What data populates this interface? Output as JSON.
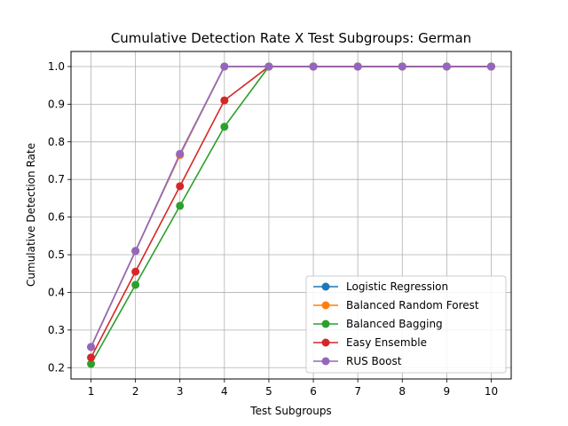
{
  "chart_data": {
    "type": "line",
    "title": "Cumulative Detection Rate X Test Subgroups: German",
    "xlabel": "Test Subgroups",
    "ylabel": "Cumulative Detection Rate",
    "x": [
      1,
      2,
      3,
      4,
      5,
      6,
      7,
      8,
      9,
      10
    ],
    "xlim": [
      0.55,
      10.45
    ],
    "ylim": [
      0.17,
      1.04
    ],
    "yticks": [
      "0.2",
      "0.3",
      "0.4",
      "0.5",
      "0.6",
      "0.7",
      "0.8",
      "0.9",
      "1.0"
    ],
    "grid": true,
    "legend_position": "lower-right",
    "series": [
      {
        "name": "Logistic Regression",
        "color": "#1f77b4",
        "values": [
          0.255,
          0.51,
          0.765,
          1.0,
          1.0,
          1.0,
          1.0,
          1.0,
          1.0,
          1.0
        ]
      },
      {
        "name": "Balanced Random Forest",
        "color": "#ff7f0e",
        "values": [
          0.255,
          0.51,
          0.765,
          1.0,
          1.0,
          1.0,
          1.0,
          1.0,
          1.0,
          1.0
        ]
      },
      {
        "name": "Balanced Bagging",
        "color": "#2ca02c",
        "values": [
          0.21,
          0.42,
          0.63,
          0.84,
          1.0,
          1.0,
          1.0,
          1.0,
          1.0,
          1.0
        ]
      },
      {
        "name": "Easy Ensemble",
        "color": "#d62728",
        "values": [
          0.227,
          0.455,
          0.682,
          0.91,
          1.0,
          1.0,
          1.0,
          1.0,
          1.0,
          1.0
        ]
      },
      {
        "name": "RUS Boost",
        "color": "#9467bd",
        "values": [
          0.255,
          0.51,
          0.768,
          1.0,
          1.0,
          1.0,
          1.0,
          1.0,
          1.0,
          1.0
        ]
      }
    ]
  }
}
